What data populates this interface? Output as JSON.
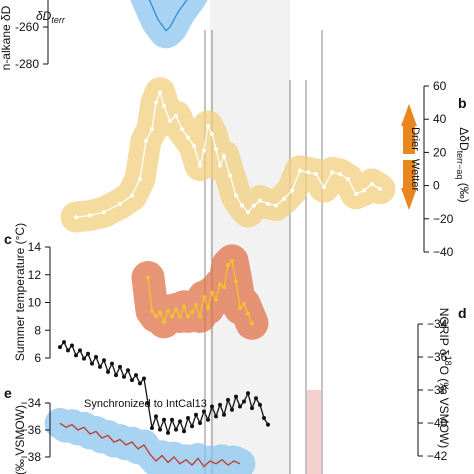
{
  "colors": {
    "blue": "#2f8fd8",
    "blue_band": "#8cc4ee",
    "yellow": "#f2c12e",
    "yellow_band": "#f1cf7e",
    "yellow_line": "#ffffff",
    "orange_band": "#e0724a",
    "black": "#111111",
    "red": "#c0392b",
    "arrow": "#e8871e",
    "shade": "#e6e6e6",
    "pink": "#f3c4c4"
  },
  "chart_data": [
    {
      "id": "a",
      "type": "line",
      "panel_label": "",
      "ylabel": "n-alkane δD",
      "legend": "δDterr",
      "ylim": [
        -280,
        -240
      ],
      "yticks": [
        "-260",
        "-280"
      ],
      "series": [
        {
          "name": "δDterr",
          "points": [
            [
              0.4,
              -236
            ],
            [
              0.43,
              -241
            ],
            [
              0.45,
              -246
            ],
            [
              0.47,
              -251
            ],
            [
              0.49,
              -256
            ],
            [
              0.51,
              -259
            ],
            [
              0.53,
              -262
            ],
            [
              0.55,
              -260
            ],
            [
              0.57,
              -256
            ],
            [
              0.59,
              -252
            ],
            [
              0.61,
              -249
            ],
            [
              0.63,
              -246
            ],
            [
              0.65,
              -243
            ],
            [
              0.67,
              -239
            ]
          ]
        }
      ]
    },
    {
      "id": "b",
      "type": "line",
      "panel_label": "b",
      "ylabel": "ΔδDterr−aq (‰)",
      "ylim": [
        -40,
        60
      ],
      "yticks": [
        "60",
        "40",
        "20",
        "0",
        "−20",
        "−40"
      ],
      "annotations": [
        "Drier",
        "Wetter"
      ],
      "series": [
        {
          "name": "",
          "points": [
            [
              0.08,
              -19
            ],
            [
              0.15,
              -18
            ],
            [
              0.22,
              -16
            ],
            [
              0.3,
              -11
            ],
            [
              0.36,
              -6
            ],
            [
              0.4,
              4
            ],
            [
              0.43,
              27
            ],
            [
              0.46,
              34
            ],
            [
              0.48,
              50
            ],
            [
              0.5,
              56
            ],
            [
              0.52,
              48
            ],
            [
              0.55,
              39
            ],
            [
              0.58,
              42
            ],
            [
              0.61,
              34
            ],
            [
              0.64,
              29
            ],
            [
              0.67,
              24
            ],
            [
              0.7,
              12
            ],
            [
              0.72,
              21
            ],
            [
              0.74,
              36
            ],
            [
              0.76,
              31
            ],
            [
              0.78,
              22
            ],
            [
              0.8,
              12
            ],
            [
              0.82,
              18
            ],
            [
              0.85,
              6
            ],
            [
              0.88,
              -6
            ],
            [
              0.91,
              -12
            ],
            [
              0.94,
              -16
            ],
            [
              0.97,
              -12
            ],
            [
              1.0,
              -9
            ],
            [
              1.04,
              -11
            ],
            [
              1.08,
              -12
            ],
            [
              1.12,
              -8
            ],
            [
              1.16,
              -3
            ],
            [
              1.2,
              9
            ],
            [
              1.24,
              8
            ],
            [
              1.28,
              7
            ],
            [
              1.32,
              -1
            ],
            [
              1.36,
              8
            ],
            [
              1.4,
              7
            ],
            [
              1.44,
              4
            ],
            [
              1.48,
              -5
            ],
            [
              1.52,
              -3
            ],
            [
              1.56,
              1
            ],
            [
              1.6,
              -2
            ]
          ]
        }
      ]
    },
    {
      "id": "c",
      "type": "line",
      "panel_label": "c",
      "ylabel": "Summer temperature (°C)",
      "ylim": [
        6,
        14
      ],
      "yticks": [
        "14",
        "12",
        "10",
        "8",
        "6"
      ],
      "series": [
        {
          "name": "",
          "points": [
            [
              0.44,
              11.8
            ],
            [
              0.46,
              9.4
            ],
            [
              0.48,
              9.0
            ],
            [
              0.5,
              9.3
            ],
            [
              0.52,
              8.6
            ],
            [
              0.54,
              9.4
            ],
            [
              0.56,
              9.0
            ],
            [
              0.58,
              9.5
            ],
            [
              0.6,
              9.0
            ],
            [
              0.62,
              9.7
            ],
            [
              0.64,
              9.0
            ],
            [
              0.66,
              9.3
            ],
            [
              0.68,
              9.8
            ],
            [
              0.7,
              9.0
            ],
            [
              0.72,
              10.4
            ],
            [
              0.74,
              9.6
            ],
            [
              0.76,
              10.7
            ],
            [
              0.78,
              10.2
            ],
            [
              0.8,
              11.3
            ],
            [
              0.82,
              11.1
            ],
            [
              0.84,
              12.7
            ],
            [
              0.86,
              13.0
            ],
            [
              0.88,
              11.5
            ],
            [
              0.9,
              9.6
            ],
            [
              0.92,
              9.9
            ],
            [
              0.94,
              9.2
            ],
            [
              0.96,
              8.5
            ]
          ]
        }
      ]
    },
    {
      "id": "d",
      "type": "line",
      "panel_label": "d",
      "ylabel": "NGRIP δ18O (‰ VSMOW)",
      "ylim": [
        -42,
        -34
      ],
      "yticks": [
        "−34",
        "−36",
        "−38",
        "−40",
        "−42"
      ],
      "series": [
        {
          "name": "",
          "points": [
            [
              0.0,
              -35.4
            ],
            [
              0.02,
              -35.1
            ],
            [
              0.04,
              -35.6
            ],
            [
              0.06,
              -35.3
            ],
            [
              0.08,
              -35.9
            ],
            [
              0.1,
              -35.6
            ],
            [
              0.12,
              -36.1
            ],
            [
              0.14,
              -35.8
            ],
            [
              0.16,
              -36.4
            ],
            [
              0.18,
              -36.0
            ],
            [
              0.2,
              -36.6
            ],
            [
              0.22,
              -36.2
            ],
            [
              0.24,
              -36.9
            ],
            [
              0.26,
              -36.4
            ],
            [
              0.28,
              -37.1
            ],
            [
              0.3,
              -36.6
            ],
            [
              0.32,
              -37.2
            ],
            [
              0.34,
              -36.8
            ],
            [
              0.36,
              -37.4
            ],
            [
              0.38,
              -37.1
            ],
            [
              0.4,
              -37.6
            ],
            [
              0.42,
              -37.3
            ],
            [
              0.44,
              -38.8
            ],
            [
              0.46,
              -40.3
            ],
            [
              0.48,
              -39.6
            ],
            [
              0.5,
              -40.4
            ],
            [
              0.52,
              -39.8
            ],
            [
              0.54,
              -40.6
            ],
            [
              0.56,
              -39.8
            ],
            [
              0.58,
              -40.4
            ],
            [
              0.6,
              -39.9
            ],
            [
              0.62,
              -40.5
            ],
            [
              0.64,
              -39.7
            ],
            [
              0.66,
              -40.2
            ],
            [
              0.68,
              -39.5
            ],
            [
              0.7,
              -40.0
            ],
            [
              0.72,
              -39.3
            ],
            [
              0.74,
              -39.8
            ],
            [
              0.76,
              -39.0
            ],
            [
              0.78,
              -39.6
            ],
            [
              0.8,
              -38.9
            ],
            [
              0.82,
              -39.5
            ],
            [
              0.84,
              -38.6
            ],
            [
              0.86,
              -39.2
            ],
            [
              0.88,
              -38.4
            ],
            [
              0.9,
              -39.0
            ],
            [
              0.92,
              -38.7
            ],
            [
              0.94,
              -38.2
            ],
            [
              0.96,
              -39.1
            ],
            [
              0.98,
              -38.5
            ],
            [
              1.0,
              -38.9
            ],
            [
              1.02,
              -39.7
            ],
            [
              1.04,
              -40.1
            ]
          ]
        }
      ]
    },
    {
      "id": "e",
      "type": "line",
      "panel_label": "e",
      "ylabel": "(‰ VSMOW)",
      "annotation": "Synchronized to IntCal13",
      "ylim": [
        -38,
        -34
      ],
      "yticks": [
        "−34",
        "−36",
        "−38"
      ],
      "series": [
        {
          "name": "",
          "points": [
            [
              0.0,
              -35.5
            ],
            [
              0.03,
              -35.8
            ],
            [
              0.06,
              -35.6
            ],
            [
              0.09,
              -36.0
            ],
            [
              0.12,
              -35.8
            ],
            [
              0.15,
              -36.3
            ],
            [
              0.18,
              -36.1
            ],
            [
              0.21,
              -36.6
            ],
            [
              0.24,
              -36.4
            ],
            [
              0.27,
              -36.9
            ],
            [
              0.3,
              -36.7
            ],
            [
              0.33,
              -37.1
            ],
            [
              0.36,
              -36.9
            ],
            [
              0.39,
              -37.4
            ],
            [
              0.42,
              -37.1
            ],
            [
              0.45,
              -37.8
            ],
            [
              0.48,
              -38.3
            ],
            [
              0.51,
              -37.9
            ],
            [
              0.54,
              -38.4
            ],
            [
              0.57,
              -38.0
            ],
            [
              0.6,
              -38.5
            ],
            [
              0.63,
              -38.2
            ],
            [
              0.66,
              -38.6
            ],
            [
              0.69,
              -38.1
            ],
            [
              0.72,
              -38.7
            ],
            [
              0.75,
              -38.3
            ],
            [
              0.78,
              -38.5
            ],
            [
              0.81,
              -38.2
            ],
            [
              0.84,
              -38.6
            ],
            [
              0.87,
              -38.3
            ],
            [
              0.9,
              -38.5
            ]
          ]
        }
      ]
    }
  ]
}
